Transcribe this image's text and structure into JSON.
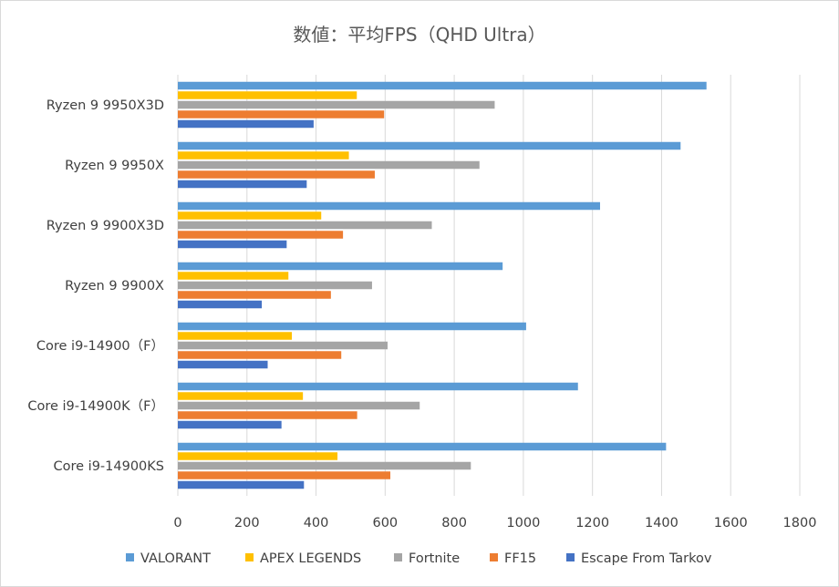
{
  "chart_data": {
    "type": "bar",
    "orientation": "horizontal",
    "title": "数値：平均FPS（QHD Ultra）",
    "categories": [
      "Ryzen 9 9950X3D",
      "Ryzen 9 9950X",
      "Ryzen 9 9900X3D",
      "Ryzen 9 9900X",
      "Core i9-14900（F）",
      "Core i9-14900K（F）",
      "Core i9-14900KS"
    ],
    "series": [
      {
        "name": "VALORANT",
        "color": "#5b9bd5",
        "values": [
          1530,
          1455,
          1222,
          940,
          1008,
          1158,
          1413
        ]
      },
      {
        "name": "APEX LEGENDS",
        "color": "#ffc000",
        "values": [
          518,
          495,
          415,
          320,
          330,
          362,
          462
        ]
      },
      {
        "name": "Fortnite",
        "color": "#a5a5a5",
        "values": [
          917,
          873,
          735,
          562,
          607,
          700,
          848
        ]
      },
      {
        "name": "FF15",
        "color": "#ed7d31",
        "values": [
          597,
          570,
          478,
          443,
          473,
          519,
          615
        ]
      },
      {
        "name": "Escape From Tarkov",
        "color": "#4472c4",
        "values": [
          393,
          373,
          315,
          243,
          260,
          300,
          365
        ]
      }
    ],
    "xlim": [
      0,
      1800
    ],
    "xticks": [
      0,
      200,
      400,
      600,
      800,
      1000,
      1200,
      1400,
      1600,
      1800
    ],
    "xticks_labels": [
      "0",
      "200",
      "400",
      "600",
      "800",
      "1000",
      "1200",
      "1400",
      "1600",
      "1800"
    ],
    "grid": true,
    "legend_position": "bottom"
  }
}
